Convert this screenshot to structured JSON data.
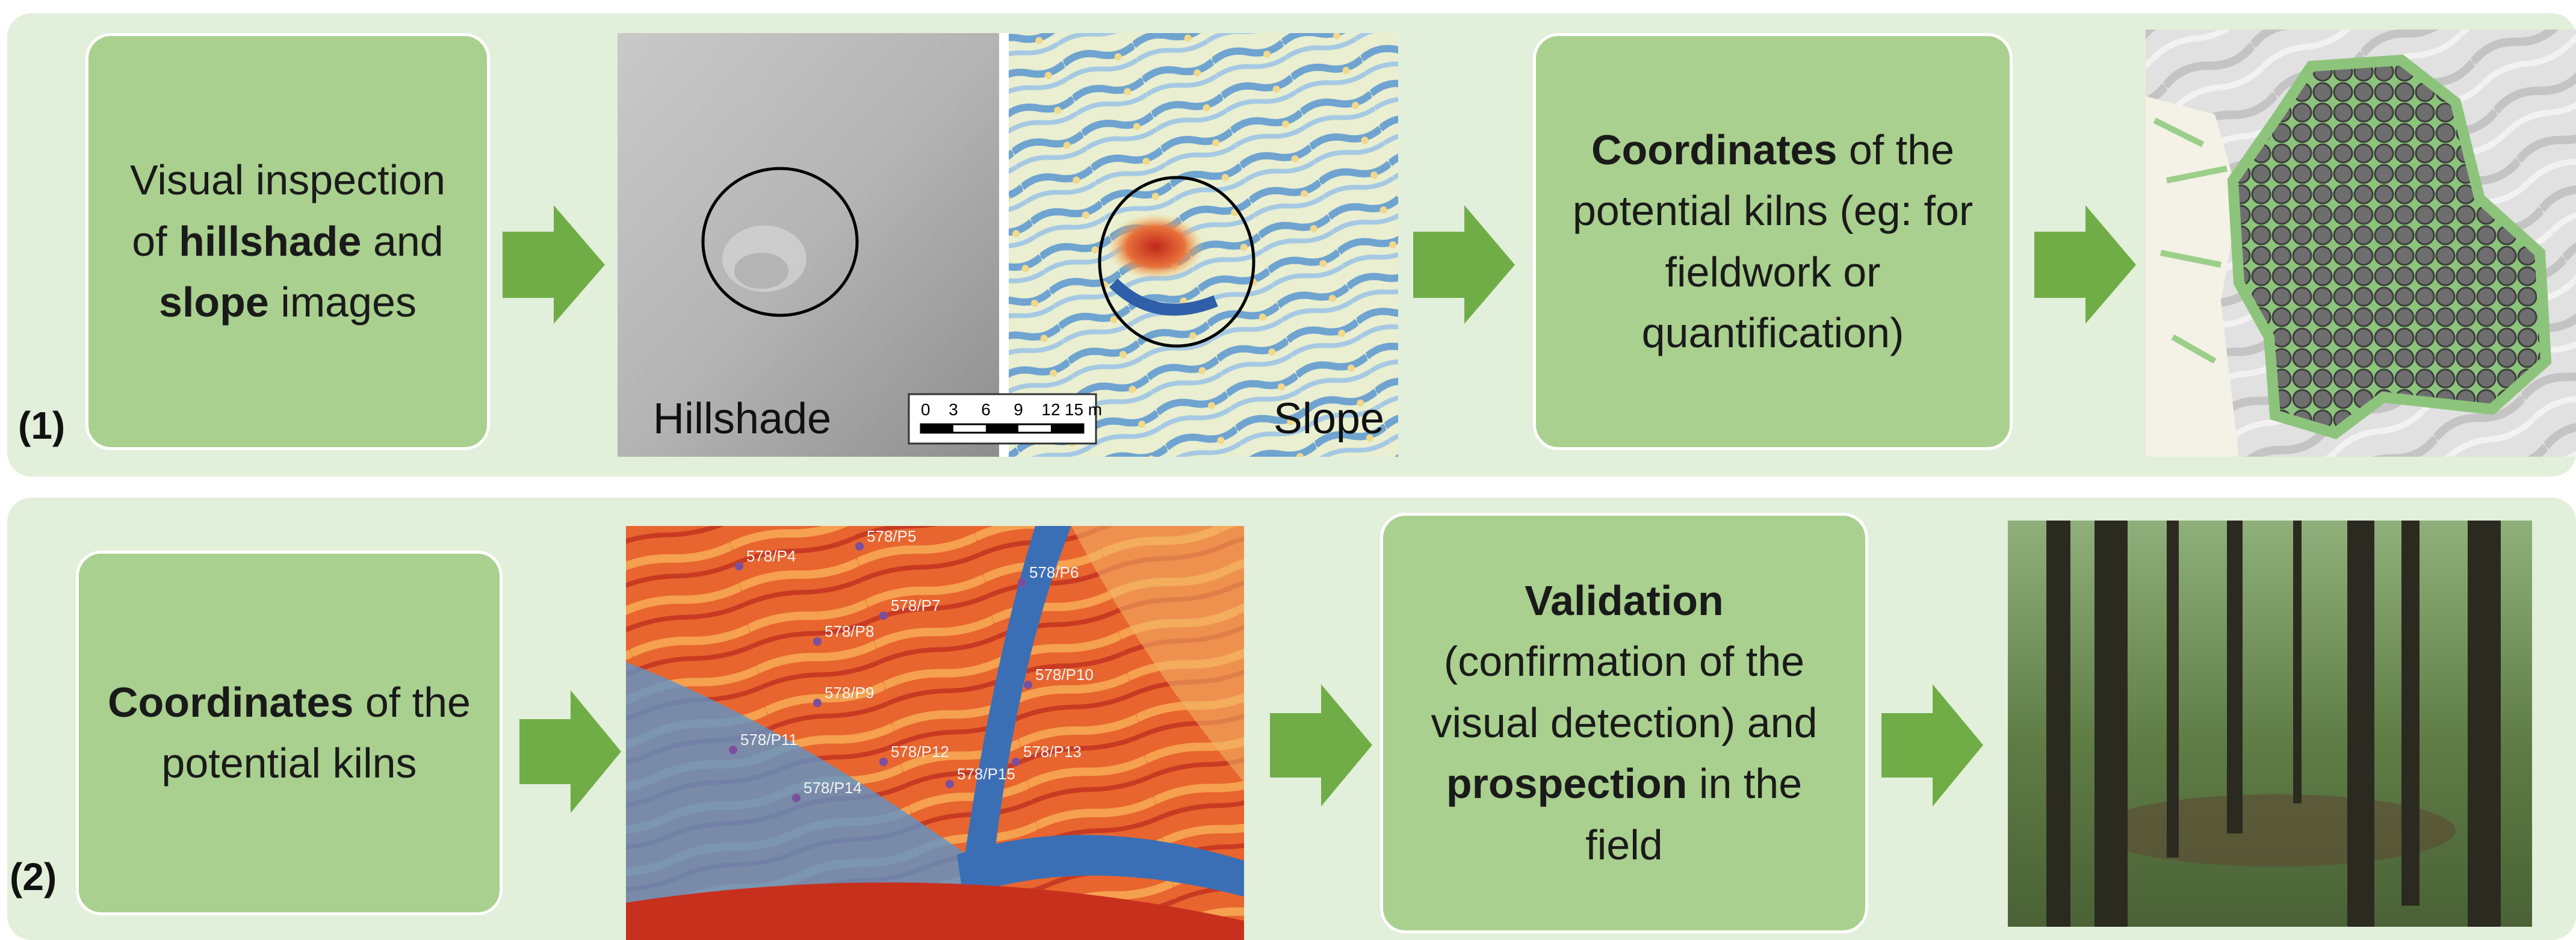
{
  "row1": {
    "label": "(1)",
    "box_left": {
      "parts": [
        {
          "text": "Visual inspection of "
        },
        {
          "text": "hillshade",
          "bold": true
        },
        {
          "text": " and "
        },
        {
          "text": "slope",
          "bold": true
        },
        {
          "text": " images"
        }
      ]
    },
    "box_right": {
      "parts": [
        {
          "text": "Coordinates",
          "bold": true
        },
        {
          "text": " of the potential kilns (eg: for fieldwork or quantification)"
        }
      ]
    },
    "hillshade_label": "Hillshade",
    "slope_label": "Slope",
    "scale_labels": [
      "0",
      "3",
      "6",
      "9",
      "12",
      "15 m"
    ]
  },
  "row2": {
    "label": "(2)",
    "box_left": {
      "parts": [
        {
          "text": "Coordinates",
          "bold": true
        },
        {
          "text": " of the potential kilns"
        }
      ]
    },
    "box_right": {
      "parts": [
        {
          "text": "Validation",
          "bold": true
        },
        {
          "text": " (confirmation of the visual detection)  and "
        },
        {
          "text": "prospection",
          "bold": true
        },
        {
          "text": " in the field"
        }
      ]
    },
    "map_labels": [
      "578/P4",
      "578/P5",
      "578/P6",
      "578/P7",
      "578/P8",
      "578/P9",
      "578/P10",
      "578/P11",
      "578/P12",
      "578/P13",
      "578/P14",
      "578/P15"
    ]
  }
}
